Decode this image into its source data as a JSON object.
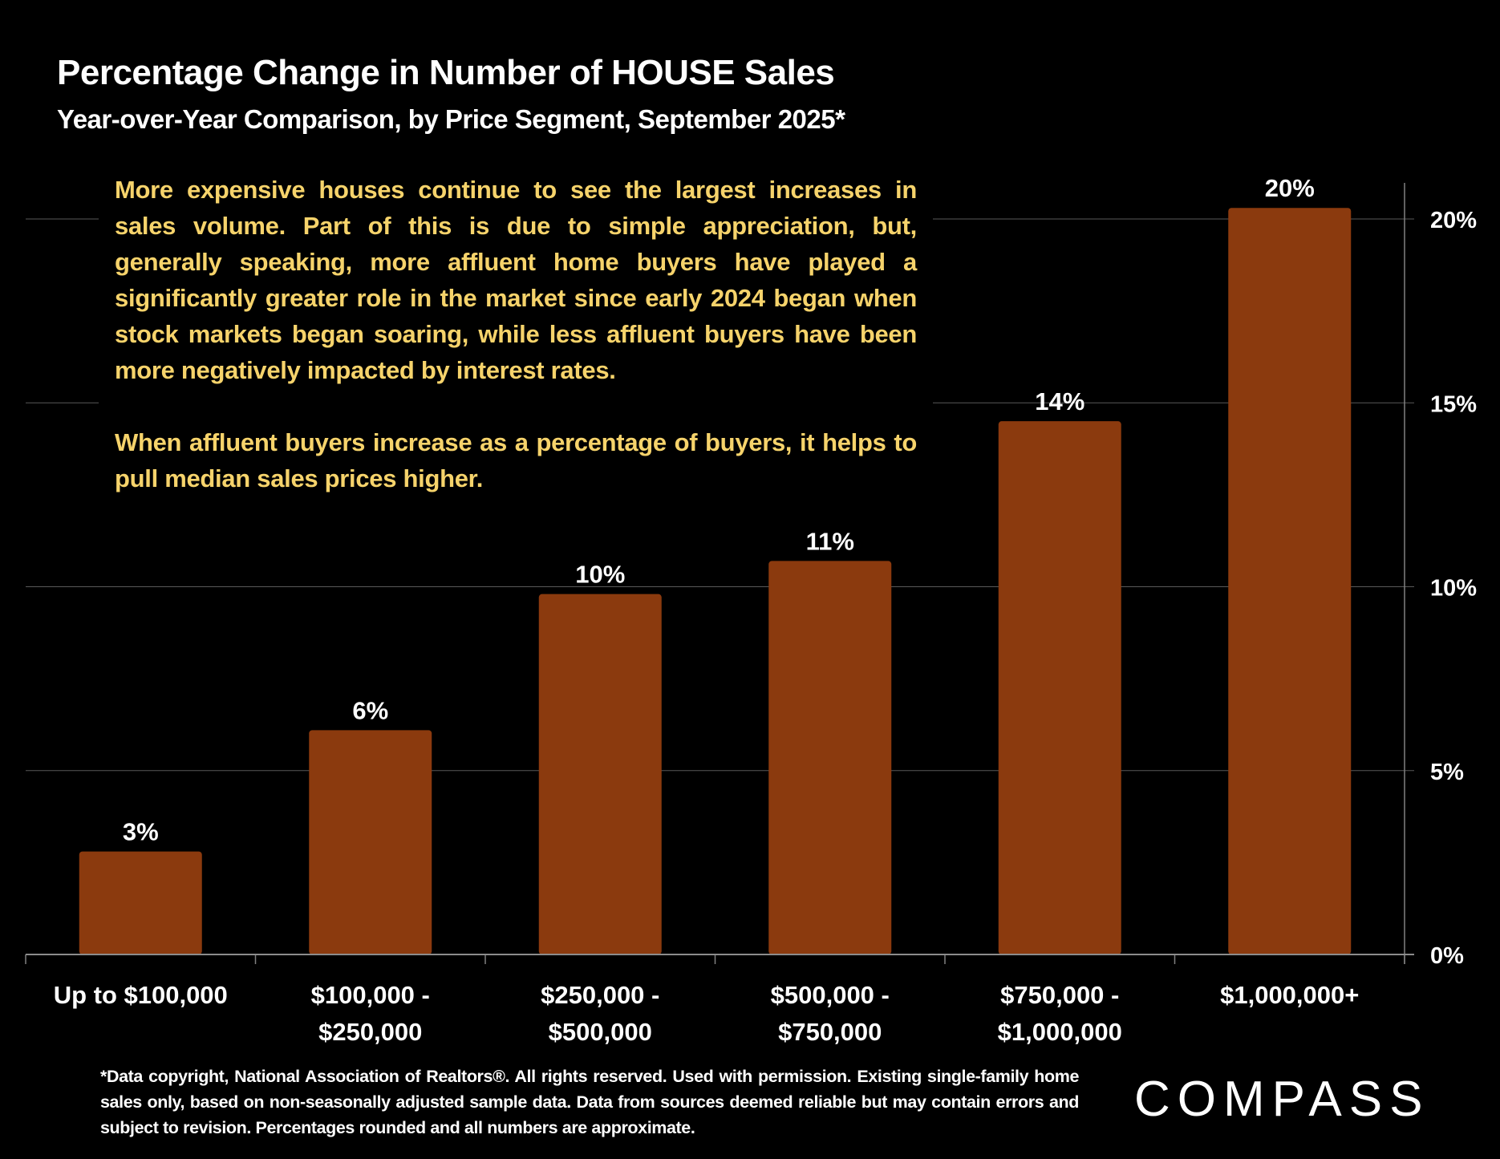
{
  "title": "Percentage Change in Number of HOUSE Sales",
  "subtitle": "Year-over-Year Comparison, by Price Segment, September 2025*",
  "annotation": [
    "More expensive houses continue to see the largest increases in sales volume. Part of this is due to simple appreciation, but, generally speaking, more affluent home buyers have played a significantly greater role in the market since early 2024 began when stock markets began soaring, while less affluent buyers have been more negatively impacted by interest rates.",
    "When affluent buyers increase as a percentage of buyers, it helps to pull median sales prices higher."
  ],
  "footnote": "*Data copyright, National Association of Realtors®. All rights reserved. Used with permission. Existing single-family home sales only, based on non-seasonally adjusted sample data. Data from sources deemed reliable but may contain errors and subject to revision. Percentages rounded and all numbers are approximate.",
  "logo": "COMPASS",
  "colors": {
    "bar": "#8B3A0E",
    "annotation_text": "#F6D36B",
    "background": "#000000",
    "grid": "#595959"
  },
  "chart_data": {
    "type": "bar",
    "categories": [
      [
        "Up to $100,000"
      ],
      [
        "$100,000 -",
        "$250,000"
      ],
      [
        "$250,000 -",
        "$500,000"
      ],
      [
        "$500,000 -",
        "$750,000"
      ],
      [
        "$750,000 -",
        "$1,000,000"
      ],
      [
        "$1,000,000+"
      ]
    ],
    "values": [
      2.8,
      6.1,
      9.8,
      10.7,
      14.5,
      20.3
    ],
    "data_labels": [
      "3%",
      "6%",
      "10%",
      "11%",
      "14%",
      "20%"
    ],
    "yaxis": {
      "position": "right",
      "ylim": [
        0,
        20
      ],
      "ticks": [
        0,
        5,
        10,
        15,
        20
      ],
      "tick_labels": [
        "0%",
        "5%",
        "10%",
        "15%",
        "20%"
      ]
    },
    "grid": true,
    "xlabel": "",
    "ylabel": ""
  }
}
